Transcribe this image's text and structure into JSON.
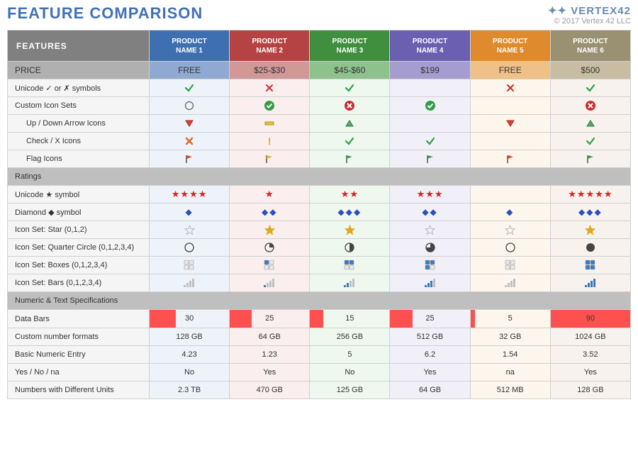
{
  "title": "FEATURE COMPARISON",
  "title_color": "#4270b8",
  "brand_name": "VERTEX42",
  "copyright": "© 2017 Vertex 42 LLC",
  "features_header": "FEATURES",
  "columns": [
    {
      "label_top": "PRODUCT",
      "label_bot": "NAME 1",
      "header_bg": "#3e6fb0",
      "price_bg": "#8fa9d2",
      "tint": "#eef3fa",
      "price": "FREE"
    },
    {
      "label_top": "PRODUCT",
      "label_bot": "NAME 2",
      "header_bg": "#b54343",
      "price_bg": "#d29797",
      "tint": "#faeeee",
      "price": "$25-$30"
    },
    {
      "label_top": "PRODUCT",
      "label_bot": "NAME 3",
      "header_bg": "#3f8f3f",
      "price_bg": "#8dc28d",
      "tint": "#eff8ef",
      "price": "$45-$60"
    },
    {
      "label_top": "PRODUCT",
      "label_bot": "NAME 4",
      "header_bg": "#6a5fb0",
      "price_bg": "#a59dd0",
      "tint": "#f1f0f9",
      "price": "$199"
    },
    {
      "label_top": "PRODUCT",
      "label_bot": "NAME 5",
      "header_bg": "#e08a2e",
      "price_bg": "#f0c187",
      "tint": "#fdf6ec",
      "price": "FREE"
    },
    {
      "label_top": "PRODUCT",
      "label_bot": "NAME 6",
      "header_bg": "#9a9072",
      "price_bg": "#c8bda3",
      "tint": "#f7f2ee",
      "price": "$500"
    }
  ],
  "price_label": "PRICE",
  "rows": [
    {
      "label": "Unicode ✓ or ✗ symbols",
      "vals": [
        "check-green",
        "x-red",
        "check-green",
        "",
        "x-red",
        "check-green"
      ]
    },
    {
      "label": "Custom Icon Sets",
      "vals": [
        "circle-empty",
        "circle-check-green",
        "circle-x-red",
        "circle-check-green",
        "",
        "circle-x-red"
      ]
    },
    {
      "label": "Up / Down Arrow Icons",
      "sub": true,
      "vals": [
        "tri-down-red",
        "bar-yellow",
        "tri-up-green",
        "",
        "tri-down-red",
        "tri-up-green"
      ]
    },
    {
      "label": "Check / X Icons",
      "sub": true,
      "vals": [
        "x-orange",
        "bang-yellow",
        "check-green",
        "check-green",
        "",
        "check-green"
      ]
    },
    {
      "label": "Flag Icons",
      "sub": true,
      "vals": [
        "flag-red",
        "flag-yellow",
        "flag-green",
        "flag-green",
        "flag-red",
        "flag-green"
      ]
    }
  ],
  "section_ratings": "Ratings",
  "rows_ratings": [
    {
      "label": "Unicode ★ symbol",
      "type": "stars",
      "vals": [
        4,
        1,
        2,
        3,
        0,
        5
      ]
    },
    {
      "label": "Diamond ◆ symbol",
      "type": "diamonds",
      "vals": [
        1,
        2,
        3,
        2,
        1,
        3
      ]
    },
    {
      "label": "Icon Set: Star (0,1,2)",
      "type": "staricon",
      "vals": [
        0,
        1,
        1,
        0,
        0,
        1
      ]
    },
    {
      "label": "Icon Set: Quarter Circle (0,1,2,3,4)",
      "type": "qcircle",
      "vals": [
        0,
        1,
        2,
        3,
        0,
        4
      ]
    },
    {
      "label": "Icon Set: Boxes (0,1,2,3,4)",
      "type": "boxes",
      "vals": [
        0,
        1,
        2,
        3,
        0,
        4
      ]
    },
    {
      "label": "Icon Set: Bars (0,1,2,3,4)",
      "type": "bars",
      "vals": [
        0,
        1,
        2,
        3,
        0,
        4
      ]
    }
  ],
  "section_numeric": "Numeric & Text Specifications",
  "rows_numeric": [
    {
      "label": "Data Bars",
      "type": "databar",
      "max": 90,
      "bar_color": "#ff5050",
      "vals": [
        30,
        25,
        15,
        25,
        5,
        90
      ]
    },
    {
      "label": "Custom number formats",
      "type": "text",
      "vals": [
        "128 GB",
        "64 GB",
        "256 GB",
        "512 GB",
        "32 GB",
        "1024 GB"
      ]
    },
    {
      "label": "Basic Numeric Entry",
      "type": "text",
      "vals": [
        "4.23",
        "1.23",
        "5",
        "6.2",
        "1.54",
        "3.52"
      ]
    },
    {
      "label": "Yes / No / na",
      "type": "text",
      "vals": [
        "No",
        "Yes",
        "No",
        "Yes",
        "na",
        "Yes"
      ]
    },
    {
      "label": "Numbers with Different Units",
      "type": "text",
      "vals": [
        "2.3 TB",
        "470 GB",
        "125 GB",
        "64 GB",
        "512 MB",
        "128 GB"
      ]
    }
  ],
  "icons": {
    "check_green": "#2e9e44",
    "x_red": "#c83030",
    "x_orange": "#e06a2e",
    "flag_red": "#d84020",
    "flag_yellow": "#e0b020",
    "flag_green": "#3a9a50",
    "star_empty": "#b8b8b8",
    "star_gold": "#e0a820",
    "box_empty": "#aaaaaa",
    "box_fill": "#3a7ac0",
    "bar_off": "#c0c0c0",
    "bar_on": "#3a7ac0"
  }
}
